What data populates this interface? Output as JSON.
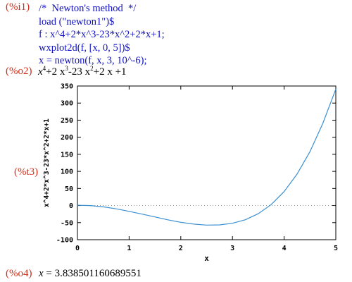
{
  "cells": {
    "i1_label": "(%i1)",
    "input_lines": [
      "/*  Newton's method  */",
      "load (\"newton1\")$",
      "f : x^4+2*x^3-23*x^2+2*x+1;",
      "wxplot2d(f, [x, 0, 5])$",
      "x = newton(f, x, 3, 10^-6);"
    ],
    "o2_label": "(%o2)",
    "o2_parts": [
      "x",
      "4",
      "+2 x",
      "3",
      "-23 x",
      "2",
      "+2 x +1"
    ],
    "t3_label": "(%t3)",
    "o4_label": "(%o4)",
    "o4_var": "x",
    "o4_rest": " = 3.838501160689551"
  },
  "chart_data": {
    "type": "line",
    "xlabel": "x",
    "ylabel": "x^4+2*x^3-23*x^2+2*x+1",
    "xlim": [
      0,
      5
    ],
    "ylim": [
      -100,
      350
    ],
    "xticks": [
      "0",
      "1",
      "2",
      "3",
      "4",
      "5"
    ],
    "yticks": [
      "-100",
      "-50",
      "0",
      "50",
      "100",
      "150",
      "200",
      "250",
      "300",
      "350"
    ],
    "series": [
      {
        "color": "#3a8fd0",
        "x": [
          0,
          0.25,
          0.5,
          0.75,
          1,
          1.25,
          1.5,
          1.75,
          2,
          2.25,
          2.5,
          2.75,
          3,
          3.25,
          3.5,
          3.75,
          4,
          4.25,
          4.5,
          4.75,
          5
        ],
        "y": [
          1,
          0.0,
          -3.9,
          -9.6,
          -17,
          -25.0,
          -33.4,
          -41.7,
          -49,
          -54.3,
          -57.2,
          -56.6,
          -52,
          -41.6,
          -23.9,
          3.0,
          41,
          91.9,
          157.8,
          240.7,
          341
        ]
      }
    ],
    "zero_line": true
  }
}
